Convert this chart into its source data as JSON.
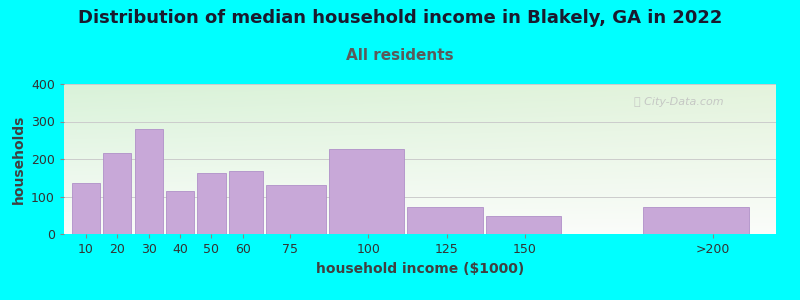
{
  "title": "Distribution of median household income in Blakely, GA in 2022",
  "subtitle": "All residents",
  "xlabel": "household income ($1000)",
  "ylabel": "households",
  "background_color": "#00FFFF",
  "bar_color": "#c8a8d8",
  "bar_edge_color": "#b090c8",
  "categories": [
    "10",
    "20",
    "30",
    "40",
    "50",
    "60",
    "75",
    "100",
    "125",
    "150",
    ">200"
  ],
  "values": [
    135,
    215,
    280,
    115,
    162,
    168,
    130,
    228,
    72,
    47,
    73
  ],
  "x_left_edges": [
    5,
    15,
    25,
    35,
    45,
    55,
    67,
    87,
    112,
    137,
    187
  ],
  "x_right_edges": [
    15,
    25,
    35,
    45,
    55,
    67,
    87,
    112,
    137,
    162,
    222
  ],
  "x_tick_positions": [
    10,
    20,
    30,
    40,
    50,
    60,
    75,
    100,
    125,
    150,
    210
  ],
  "xlim": [
    3,
    230
  ],
  "ylim": [
    0,
    400
  ],
  "yticks": [
    0,
    100,
    200,
    300,
    400
  ],
  "title_fontsize": 13,
  "subtitle_fontsize": 11,
  "label_fontsize": 10,
  "tick_fontsize": 9,
  "watermark_text": "ⓘ City-Data.com",
  "title_color": "#1a1a2e",
  "subtitle_color": "#5a5a5a",
  "label_color": "#404040",
  "grid_color": "#cccccc",
  "plot_bg_color_topleft": "#d8efd8",
  "plot_bg_color_bottomright": "#f8f8f8"
}
